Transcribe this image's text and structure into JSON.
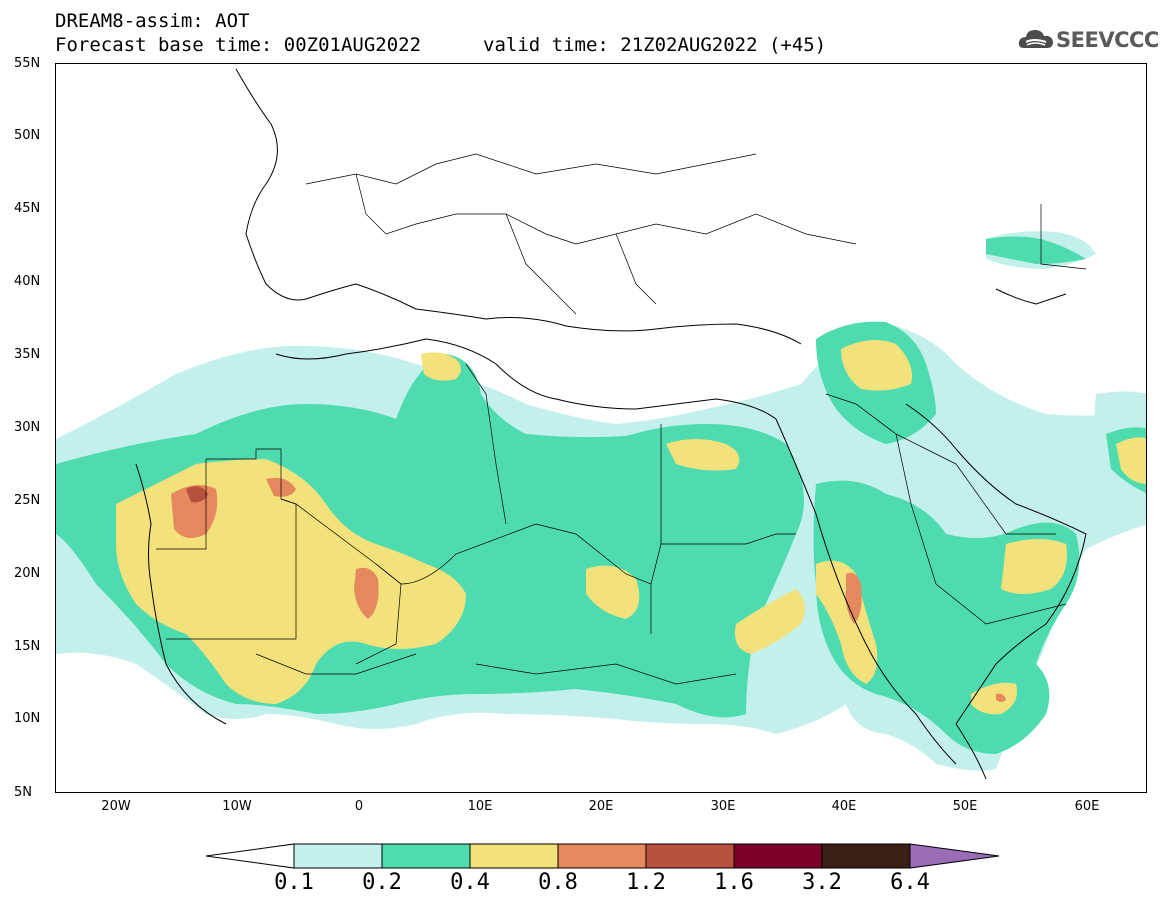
{
  "header": {
    "line1": "DREAM8-assim: AOT",
    "line2": "Forecast base time: 00Z01AUG2022",
    "line3": "valid time: 21Z02AUG2022 (+45)"
  },
  "logo": {
    "text": "SEEVCCC",
    "icon": "cloud-logo-icon"
  },
  "map": {
    "projection": "lat-lon",
    "lon_range": [
      -25,
      65
    ],
    "lat_range": [
      5,
      55
    ],
    "lat_labels": [
      "55N",
      "50N",
      "45N",
      "40N",
      "35N",
      "30N",
      "25N",
      "20N",
      "15N",
      "10N",
      "5N"
    ],
    "lon_labels": [
      "20W",
      "10W",
      "0",
      "10E",
      "20E",
      "30E",
      "40E",
      "50E",
      "60E"
    ],
    "field": "Aerosol optical thickness",
    "colors": {
      "l1": "#c3f0ea",
      "l2": "#4fdbb0",
      "l3": "#f3e27c",
      "l4": "#e5885e",
      "l5": "#b5513d",
      "l6": "#7a0026",
      "l7": "#3a2014",
      "l8": "#9b6bb8"
    }
  },
  "colorbar": {
    "labels": [
      "0.1",
      "0.2",
      "0.4",
      "0.8",
      "1.2",
      "1.6",
      "3.2",
      "6.4"
    ],
    "colors": [
      "#ffffff",
      "#c3f0ea",
      "#4fdbb0",
      "#f3e27c",
      "#e5885e",
      "#b5513d",
      "#7a0026",
      "#3a2014",
      "#9b6bb8"
    ]
  }
}
